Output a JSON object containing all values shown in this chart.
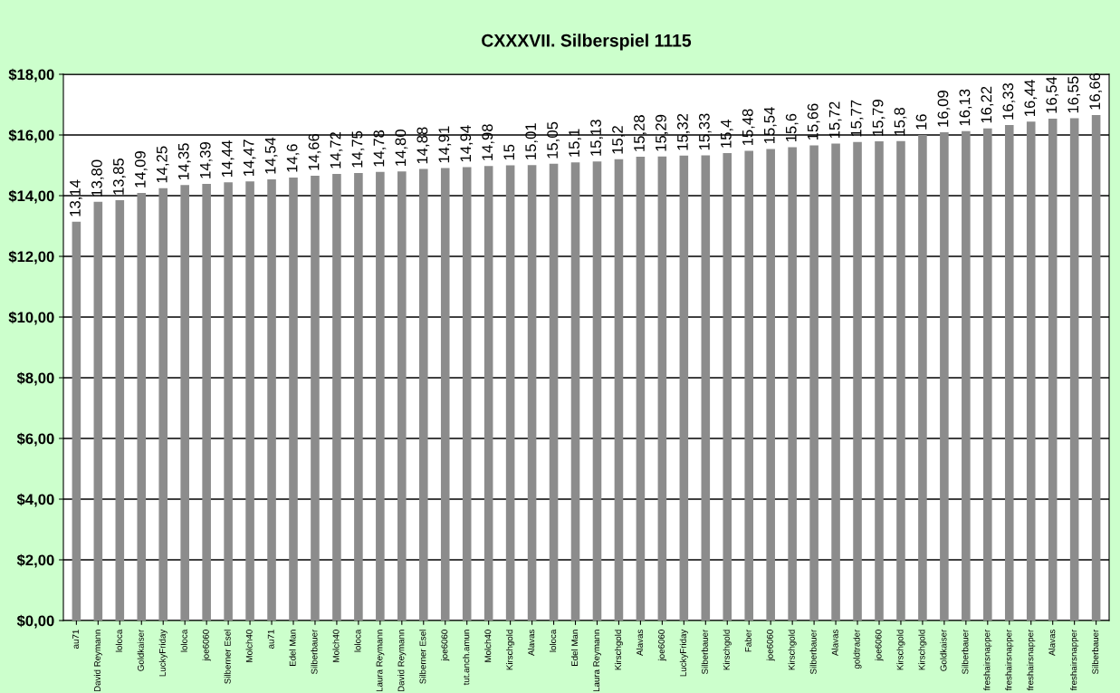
{
  "chart_data": {
    "type": "bar",
    "title": "CXXXVII. Silberspiel 1115",
    "categories": [
      "au71",
      "David Reymann",
      "loloca",
      "Goldkaiser",
      "LuckyFriday",
      "loloca",
      "joe6060",
      "Silberner Esel",
      "Molch40",
      "au71",
      "Edel Man",
      "Silberbauer",
      "Molch40",
      "loloca",
      "Laura Reymann",
      "David Reymann",
      "Silberner Esel",
      "joe6060",
      "tut.anch.amun",
      "Molch40",
      "Kirschgold",
      "Alavas",
      "loloca",
      "Edel Man",
      "Laura Reymann",
      "Kirschgold",
      "Alavas",
      "joe6060",
      "LuckyFriday",
      "Silberbauer",
      "Kirschgold",
      "Faber",
      "joe6060",
      "Kirschgold",
      "Silberbauer",
      "Alavas",
      "goldtrader",
      "joe6060",
      "Kirschgold",
      "Kirschgold",
      "Goldkaiser",
      "Silberbauer",
      "freshairsnapper",
      "freshairsnapper",
      "freshairsnapper",
      "Alavas",
      "freshairsnapper",
      "Silberbauer"
    ],
    "values": [
      13.14,
      13.8,
      13.85,
      14.09,
      14.25,
      14.35,
      14.39,
      14.44,
      14.47,
      14.54,
      14.6,
      14.66,
      14.72,
      14.75,
      14.78,
      14.8,
      14.88,
      14.91,
      14.94,
      14.98,
      15,
      15.01,
      15.05,
      15.1,
      15.13,
      15.2,
      15.28,
      15.29,
      15.32,
      15.33,
      15.4,
      15.48,
      15.54,
      15.6,
      15.66,
      15.72,
      15.77,
      15.79,
      15.8,
      16,
      16.09,
      16.13,
      16.22,
      16.33,
      16.44,
      16.54,
      16.55,
      16.66
    ],
    "value_labels": [
      "13,14",
      "13,80",
      "13,85",
      "14,09",
      "14,25",
      "14,35",
      "14,39",
      "14,44",
      "14,47",
      "14,54",
      "14,6",
      "14,66",
      "14,72",
      "14,75",
      "14,78",
      "14,80",
      "14,88",
      "14,91",
      "14,94",
      "14,98",
      "15",
      "15,01",
      "15,05",
      "15,1",
      "15,13",
      "15,2",
      "15,28",
      "15,29",
      "15,32",
      "15,33",
      "15,4",
      "15,48",
      "15,54",
      "15,6",
      "15,66",
      "15,72",
      "15,77",
      "15,79",
      "15,8",
      "16",
      "16,09",
      "16,13",
      "16,22",
      "16,33",
      "16,44",
      "16,54",
      "16,55",
      "16,66"
    ],
    "color": "#8c8c8c",
    "ylim": [
      0,
      18
    ],
    "yticks": [
      {
        "value": 0,
        "label": "$0,00"
      },
      {
        "value": 2,
        "label": "$2,00"
      },
      {
        "value": 4,
        "label": "$4,00"
      },
      {
        "value": 6,
        "label": "$6,00"
      },
      {
        "value": 8,
        "label": "$8,00"
      },
      {
        "value": 10,
        "label": "$10,00"
      },
      {
        "value": 12,
        "label": "$12,00"
      },
      {
        "value": 14,
        "label": "$14,00"
      },
      {
        "value": 16,
        "label": "$16,00"
      },
      {
        "value": 18,
        "label": "$18,00"
      }
    ],
    "grid": "y",
    "legend": false
  }
}
